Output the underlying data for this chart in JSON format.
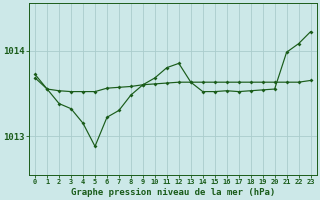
{
  "title": "Graphe pression niveau de la mer (hPa)",
  "bg_color": "#cce8e8",
  "grid_color": "#aacccc",
  "line_color": "#1a5c1a",
  "x_labels": [
    "0",
    "1",
    "2",
    "3",
    "4",
    "5",
    "6",
    "7",
    "8",
    "9",
    "10",
    "11",
    "12",
    "13",
    "14",
    "15",
    "16",
    "17",
    "18",
    "19",
    "20",
    "21",
    "22",
    "23"
  ],
  "yticks": [
    1013,
    1014
  ],
  "ylim": [
    1012.55,
    1014.55
  ],
  "series1": [
    1013.68,
    1013.55,
    1013.53,
    1013.52,
    1013.52,
    1013.52,
    1013.56,
    1013.57,
    1013.58,
    1013.6,
    1013.61,
    1013.62,
    1013.63,
    1013.63,
    1013.63,
    1013.63,
    1013.63,
    1013.63,
    1013.63,
    1013.63,
    1013.63,
    1013.63,
    1013.63,
    1013.65
  ],
  "series2": [
    1013.72,
    1013.55,
    1013.38,
    1013.32,
    1013.15,
    1012.88,
    1013.22,
    1013.3,
    1013.48,
    1013.6,
    1013.68,
    1013.8,
    1013.85,
    1013.63,
    1013.52,
    1013.52,
    1013.53,
    1013.52,
    1013.53,
    1013.54,
    1013.55,
    1013.98,
    1014.08,
    1014.22
  ]
}
